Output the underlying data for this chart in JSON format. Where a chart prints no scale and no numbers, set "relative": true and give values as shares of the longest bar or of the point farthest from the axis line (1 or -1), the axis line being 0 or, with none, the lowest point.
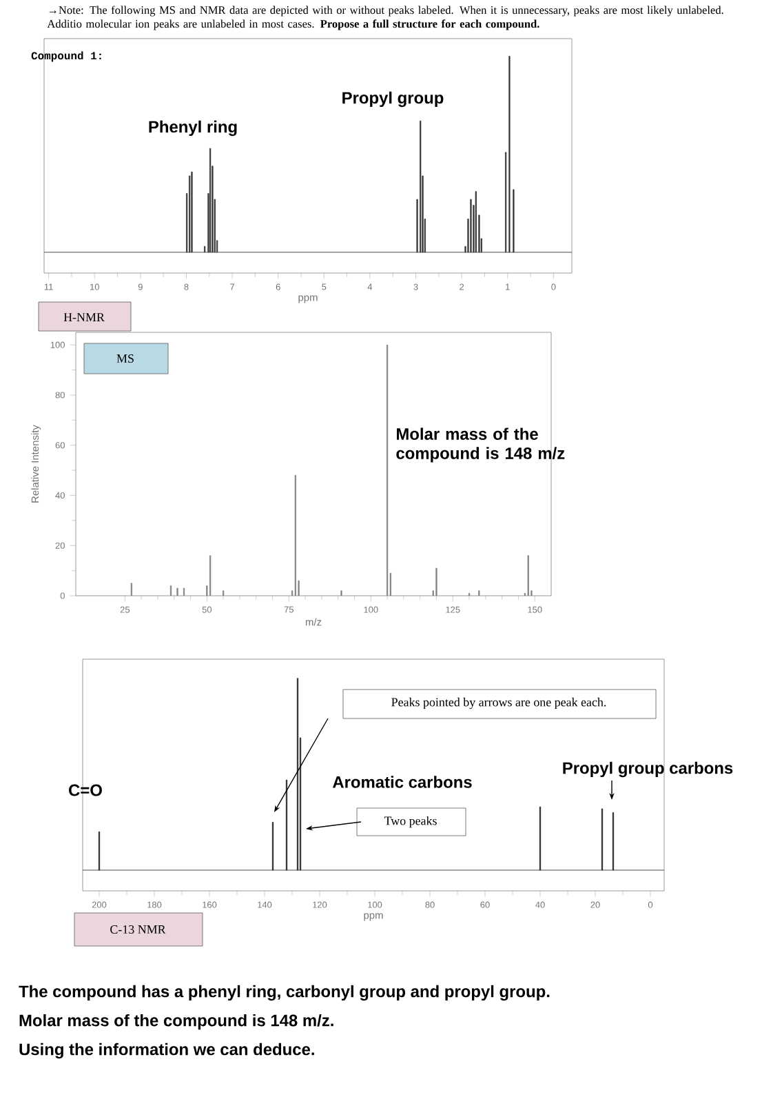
{
  "chart_data": [
    {
      "type": "bar",
      "relative": true,
      "title": "Compound 1:",
      "xlabel": "ppm",
      "color": "#333333",
      "tick_labels": "x",
      "x": [
        7.99,
        7.93,
        7.88,
        7.6,
        7.52,
        7.48,
        7.43,
        7.38,
        7.33,
        2.97,
        2.9,
        2.85,
        2.8,
        1.92,
        1.86,
        1.8,
        1.74,
        1.69,
        1.62,
        1.57,
        1.04,
        0.96,
        0.87
      ],
      "values": [
        0.3,
        0.39,
        0.41,
        0.03,
        0.3,
        0.53,
        0.44,
        0.27,
        0.06,
        0.27,
        0.67,
        0.39,
        0.17,
        0.03,
        0.17,
        0.27,
        0.24,
        0.31,
        0.19,
        0.07,
        0.51,
        1.0,
        0.32
      ],
      "xlim": [
        11.1,
        -0.4
      ],
      "xticks": [
        11,
        10,
        9,
        8,
        7,
        6,
        5,
        4,
        3,
        2,
        1,
        0
      ],
      "annotations": [
        "→Note: The following MS and NMR data are depicted with or without peaks labeled. When it is unnecessary, peaks are most likely unlabeled. Additio molecular ion peaks are unlabeled in most cases. **Propose a full structure for each compound.**",
        "Phenyl ring",
        "Propyl group",
        "H-NMR"
      ]
    },
    {
      "type": "bar",
      "xlabel": "m/z",
      "ylabel": "Relative Intensity",
      "color": "#808080",
      "x": [
        27,
        39,
        41,
        43,
        50,
        51,
        55,
        76,
        77,
        78,
        91,
        105,
        106,
        119,
        120,
        130,
        133,
        147,
        148,
        149
      ],
      "values": [
        5,
        4,
        3,
        3,
        4,
        16,
        2,
        2,
        48,
        6,
        2,
        100,
        9,
        2,
        11,
        1,
        2,
        1,
        16,
        2
      ],
      "xlim": [
        10,
        155
      ],
      "xticks": [
        25,
        50,
        75,
        100,
        125,
        150
      ],
      "ylim": [
        0,
        105
      ],
      "yticks": [
        0,
        20,
        40,
        60,
        80,
        100
      ],
      "annotations": [
        "MS",
        "Molar mass of the compound is 148 m/z"
      ]
    },
    {
      "type": "bar",
      "relative": true,
      "xlabel": "ppm",
      "color": "#222222",
      "tick_labels": "x",
      "x": [
        200,
        137,
        132,
        128,
        127,
        40,
        17.5,
        13.5
      ],
      "values": [
        0.2,
        0.25,
        0.47,
        1.0,
        0.69,
        0.33,
        0.32,
        0.3
      ],
      "xlim": [
        206,
        -5
      ],
      "xticks": [
        200,
        180,
        160,
        140,
        120,
        100,
        80,
        60,
        40,
        20,
        0
      ],
      "annotations": [
        "Peaks pointed by arrows are one peak each.",
        "C=O",
        "Aromatic carbons",
        "Two peaks",
        "Propyl group carbons",
        "C-13 NMR",
        "The compound has a phenyl ring, carbonyl group and propyl group.",
        "Molar mass of the compound is 148 m/z.",
        "Using the information we can deduce."
      ]
    }
  ]
}
